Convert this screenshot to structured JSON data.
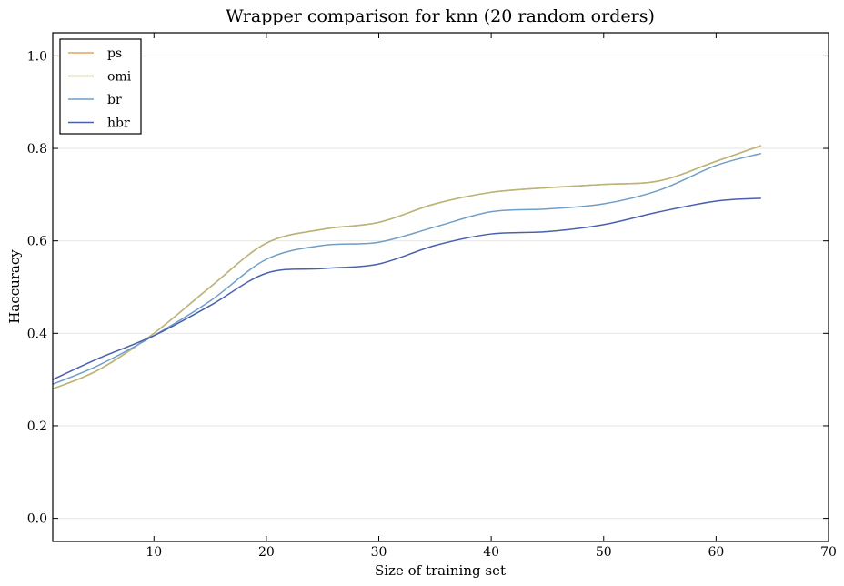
{
  "chart_data": {
    "type": "line",
    "title": "Wrapper comparison for knn (20 random orders)",
    "xlabel": "Size of training set",
    "ylabel": "Haccuracy",
    "xlim": [
      1,
      70
    ],
    "ylim": [
      -0.05,
      1.05
    ],
    "xticks": [
      10,
      20,
      30,
      40,
      50,
      60,
      70
    ],
    "yticks": [
      0.0,
      0.2,
      0.4,
      0.6,
      0.8,
      1.0
    ],
    "xtick_labels": [
      "10",
      "20",
      "30",
      "40",
      "50",
      "60",
      "70"
    ],
    "ytick_labels": [
      "0.0",
      "0.2",
      "0.4",
      "0.6",
      "0.8",
      "1.0"
    ],
    "grid": true,
    "legend": "top-left",
    "x": [
      1,
      5,
      10,
      15,
      20,
      25,
      30,
      35,
      40,
      45,
      50,
      55,
      60,
      64
    ],
    "series": [
      {
        "name": "ps",
        "color": "#e8a35a",
        "values": [
          0.28,
          0.32,
          0.4,
          0.5,
          0.595,
          0.625,
          0.64,
          0.68,
          0.705,
          0.715,
          0.722,
          0.73,
          0.772,
          0.806
        ]
      },
      {
        "name": "omi",
        "color": "#b8b57a",
        "values": [
          0.28,
          0.32,
          0.4,
          0.5,
          0.595,
          0.625,
          0.64,
          0.68,
          0.705,
          0.715,
          0.722,
          0.73,
          0.772,
          0.806
        ]
      },
      {
        "name": "br",
        "color": "#6f9ec8",
        "values": [
          0.29,
          0.33,
          0.395,
          0.47,
          0.56,
          0.59,
          0.597,
          0.63,
          0.663,
          0.669,
          0.68,
          0.71,
          0.763,
          0.789
        ]
      },
      {
        "name": "hbr",
        "color": "#4a60ab",
        "values": [
          0.3,
          0.345,
          0.395,
          0.46,
          0.53,
          0.54,
          0.55,
          0.59,
          0.615,
          0.62,
          0.635,
          0.663,
          0.686,
          0.692
        ]
      }
    ]
  }
}
